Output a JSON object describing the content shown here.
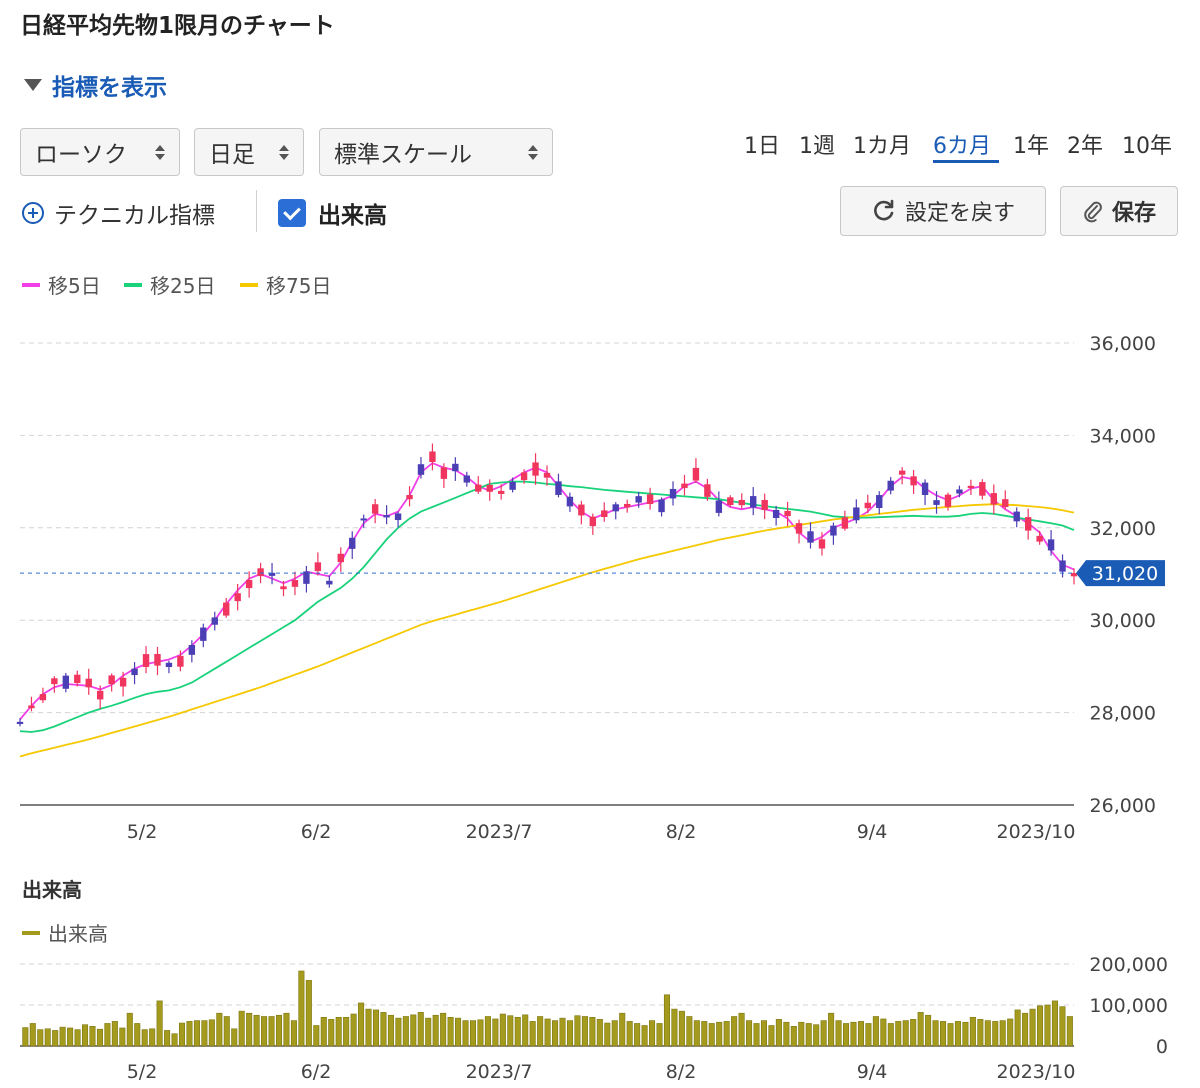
{
  "page": {
    "title": "日経平均先物1限月のチャート",
    "indicator_toggle": "指標を表示"
  },
  "controls": {
    "chart_type": "ローソク",
    "interval": "日足",
    "scale": "標準スケール",
    "periods": [
      "1日",
      "1週",
      "1カ月",
      "6カ月",
      "1年",
      "2年",
      "10年"
    ],
    "active_period": "6カ月",
    "technical_label": "テクニカル指標",
    "volume_checkbox_label": "出来高",
    "volume_checked": true,
    "reset_label": "設定を戻す",
    "save_label": "保存"
  },
  "legend": [
    {
      "label": "移5日",
      "color": "#f03ee8"
    },
    {
      "label": "移25日",
      "color": "#19d27a"
    },
    {
      "label": "移75日",
      "color": "#f5c800"
    }
  ],
  "chart_data": [
    {
      "type": "candlestick",
      "y_ticks": [
        "36,000",
        "34,000",
        "32,000",
        "30,000",
        "28,000",
        "26,000"
      ],
      "ylim": [
        26000,
        36000
      ],
      "x_tick_labels": [
        "5/2",
        "6/2",
        "2023/7",
        "8/2",
        "9/4",
        "2023/10"
      ],
      "current_price": 31020,
      "current_price_label": "31,020",
      "up_color": "#f0355f",
      "down_color": "#4b3fb5",
      "series": [
        {
          "name": "移5日",
          "color": "#f03ee8",
          "values": [
            27850,
            28150,
            28400,
            28550,
            28620,
            28600,
            28580,
            28500,
            28600,
            28800,
            28950,
            29050,
            29100,
            29150,
            29250,
            29450,
            29700,
            30000,
            30350,
            30650,
            30900,
            31000,
            30900,
            30800,
            30900,
            31050,
            31000,
            30950,
            31250,
            31700,
            32100,
            32300,
            32250,
            32350,
            32700,
            33200,
            33400,
            33300,
            33250,
            33100,
            32900,
            32800,
            32900,
            33050,
            33200,
            33300,
            33200,
            32900,
            32600,
            32350,
            32200,
            32300,
            32400,
            32450,
            32500,
            32550,
            32600,
            32700,
            32900,
            33000,
            32850,
            32600,
            32450,
            32400,
            32450,
            32400,
            32350,
            32200,
            31900,
            31700,
            31800,
            32000,
            32100,
            32200,
            32350,
            32600,
            32900,
            33100,
            33050,
            32850,
            32700,
            32600,
            32700,
            32850,
            32900,
            32600,
            32400,
            32250,
            32100,
            31900,
            31500,
            31200,
            31100
          ]
        },
        {
          "name": "移25日",
          "color": "#19d27a",
          "values": [
            27600,
            27580,
            27620,
            27700,
            27800,
            27900,
            28000,
            28080,
            28150,
            28230,
            28320,
            28400,
            28450,
            28480,
            28550,
            28650,
            28800,
            28950,
            29100,
            29250,
            29400,
            29550,
            29700,
            29850,
            30000,
            30200,
            30400,
            30550,
            30700,
            30900,
            31150,
            31450,
            31750,
            32000,
            32200,
            32350,
            32450,
            32550,
            32650,
            32750,
            32850,
            32950,
            32980,
            33000,
            33000,
            32980,
            32950,
            32930,
            32900,
            32880,
            32850,
            32820,
            32800,
            32780,
            32760,
            32740,
            32720,
            32700,
            32680,
            32660,
            32640,
            32620,
            32580,
            32540,
            32500,
            32470,
            32440,
            32410,
            32380,
            32350,
            32300,
            32250,
            32230,
            32220,
            32220,
            32230,
            32240,
            32250,
            32260,
            32250,
            32240,
            32240,
            32260,
            32300,
            32320,
            32300,
            32260,
            32220,
            32180,
            32140,
            32100,
            32050,
            31950
          ]
        },
        {
          "name": "移75日",
          "color": "#f5c800",
          "values": [
            27050,
            27120,
            27180,
            27240,
            27300,
            27360,
            27420,
            27490,
            27560,
            27630,
            27700,
            27770,
            27840,
            27910,
            27990,
            28070,
            28150,
            28230,
            28310,
            28390,
            28470,
            28550,
            28640,
            28730,
            28820,
            28910,
            29000,
            29100,
            29200,
            29300,
            29400,
            29500,
            29600,
            29700,
            29800,
            29900,
            29980,
            30050,
            30120,
            30190,
            30260,
            30330,
            30400,
            30480,
            30560,
            30640,
            30720,
            30800,
            30880,
            30960,
            31040,
            31110,
            31180,
            31250,
            31320,
            31380,
            31440,
            31500,
            31560,
            31620,
            31680,
            31740,
            31790,
            31840,
            31890,
            31940,
            31980,
            32020,
            32060,
            32100,
            32140,
            32180,
            32210,
            32240,
            32270,
            32300,
            32330,
            32360,
            32390,
            32410,
            32430,
            32450,
            32470,
            32490,
            32500,
            32510,
            32500,
            32490,
            32470,
            32450,
            32420,
            32380,
            32330
          ]
        }
      ]
    },
    {
      "type": "bar",
      "title": "出来高",
      "legend": "出来高",
      "color": "#a39a1e",
      "y_ticks": [
        "200,000",
        "100,000",
        "0"
      ],
      "ylim": [
        0,
        200000
      ],
      "x_tick_labels": [
        "5/2",
        "6/2",
        "2023/7",
        "8/2",
        "9/4",
        "2023/10"
      ],
      "values": [
        45000,
        55000,
        40000,
        42000,
        38000,
        46000,
        44000,
        40000,
        52000,
        48000,
        41000,
        55000,
        60000,
        44000,
        80000,
        55000,
        40000,
        42000,
        110000,
        38000,
        30000,
        56000,
        60000,
        62000,
        62000,
        64000,
        80000,
        72000,
        42000,
        85000,
        80000,
        75000,
        72000,
        72000,
        75000,
        80000,
        62000,
        183000,
        160000,
        50000,
        70000,
        65000,
        70000,
        70000,
        78000,
        105000,
        90000,
        88000,
        82000,
        75000,
        68000,
        72000,
        76000,
        82000,
        68000,
        75000,
        80000,
        70000,
        68000,
        62000,
        62000,
        64000,
        72000,
        66000,
        78000,
        74000,
        70000,
        76000,
        60000,
        72000,
        66000,
        62000,
        68000,
        62000,
        74000,
        72000,
        70000,
        65000,
        56000,
        62000,
        80000,
        60000,
        55000,
        50000,
        62000,
        55000,
        125000,
        90000,
        85000,
        72000,
        62000,
        60000,
        55000,
        58000,
        60000,
        72000,
        80000,
        62000,
        55000,
        62000,
        50000,
        65000,
        58000,
        48000,
        58000,
        55000,
        52000,
        62000,
        80000,
        62000,
        55000,
        58000,
        60000,
        55000,
        72000,
        66000,
        55000,
        60000,
        62000,
        65000,
        82000,
        75000,
        62000,
        60000,
        55000,
        60000,
        58000,
        70000,
        65000,
        62000,
        60000,
        62000,
        66000,
        88000,
        80000,
        90000,
        98000,
        100000,
        110000,
        96000,
        72000
      ]
    }
  ]
}
